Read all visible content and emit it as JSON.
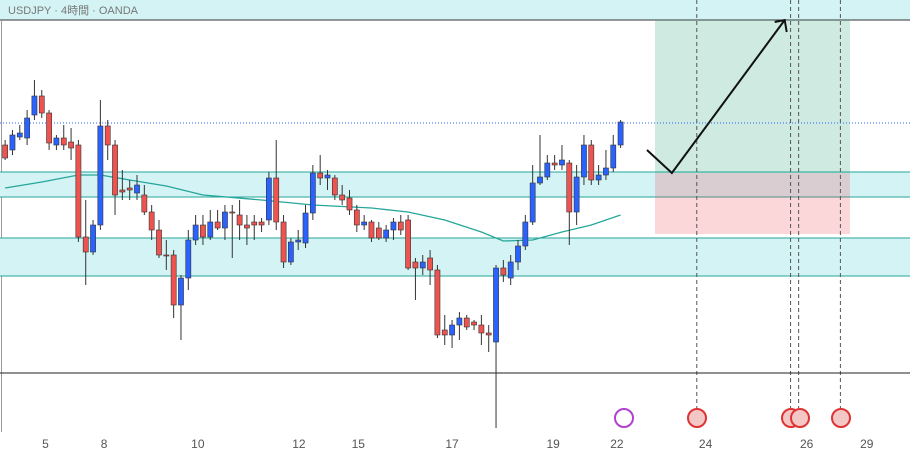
{
  "chart_data": {
    "type": "candlestick",
    "title": "USDJPY · 4時間 · OANDA",
    "open": [
      310,
      305,
      318,
      317,
      340,
      359,
      342,
      310,
      317,
      313,
      310,
      218,
      203,
      230,
      329,
      310,
      265,
      267,
      262,
      260,
      243,
      225,
      200,
      200,
      150,
      177,
      215,
      230,
      218,
      233,
      227,
      243,
      240,
      230,
      233,
      233,
      235,
      277,
      233,
      193,
      213,
      212,
      242,
      282,
      277,
      277,
      260,
      257,
      245,
      230,
      233,
      227,
      217,
      225,
      233,
      235,
      193,
      187,
      197,
      185,
      125,
      120,
      130,
      137,
      133,
      130,
      122,
      113,
      187,
      177,
      193,
      209,
      233,
      272,
      278,
      292,
      290,
      292,
      243,
      278,
      310,
      275,
      280,
      287,
      310
    ],
    "high": [
      315,
      325,
      330,
      345,
      375,
      365,
      345,
      320,
      330,
      327,
      315,
      255,
      235,
      355,
      335,
      315,
      285,
      275,
      280,
      270,
      250,
      235,
      215,
      205,
      180,
      225,
      240,
      240,
      245,
      245,
      250,
      250,
      255,
      240,
      240,
      237,
      283,
      315,
      240,
      217,
      225,
      250,
      290,
      300,
      285,
      280,
      270,
      265,
      250,
      240,
      235,
      233,
      230,
      237,
      240,
      240,
      197,
      200,
      205,
      190,
      140,
      135,
      143,
      140,
      135,
      140,
      130,
      190,
      195,
      200,
      215,
      240,
      290,
      320,
      300,
      300,
      310,
      295,
      290,
      320,
      315,
      290,
      305,
      320,
      335
    ],
    "low": [
      295,
      300,
      315,
      310,
      335,
      337,
      305,
      305,
      305,
      295,
      213,
      170,
      200,
      225,
      295,
      240,
      255,
      255,
      255,
      240,
      215,
      197,
      185,
      137,
      115,
      165,
      210,
      210,
      215,
      225,
      215,
      197,
      215,
      210,
      215,
      223,
      230,
      225,
      187,
      190,
      205,
      207,
      235,
      270,
      265,
      255,
      250,
      240,
      223,
      225,
      213,
      215,
      213,
      215,
      220,
      185,
      155,
      180,
      170,
      117,
      110,
      107,
      115,
      125,
      125,
      110,
      103,
      27,
      173,
      170,
      185,
      205,
      230,
      270,
      275,
      285,
      285,
      210,
      230,
      270,
      270,
      270,
      275,
      283,
      307
    ],
    "close": [
      297,
      320,
      322,
      337,
      359,
      342,
      312,
      317,
      310,
      307,
      218,
      203,
      230,
      329,
      310,
      260,
      263,
      265,
      270,
      243,
      225,
      200,
      199,
      150,
      177,
      215,
      230,
      218,
      233,
      227,
      243,
      242,
      230,
      227,
      230,
      230,
      277,
      233,
      193,
      213,
      215,
      242,
      282,
      277,
      280,
      260,
      255,
      245,
      230,
      233,
      217,
      217,
      225,
      233,
      225,
      187,
      187,
      193,
      185,
      120,
      120,
      130,
      137,
      128,
      130,
      122,
      120,
      187,
      180,
      193,
      209,
      233,
      272,
      278,
      292,
      290,
      295,
      243,
      278,
      310,
      275,
      280,
      287,
      310,
      333
    ],
    "up_color": "#2962ff",
    "down_color": "#ef5350",
    "ma": {
      "color": "#26a69a",
      "x": [
        0,
        5,
        10,
        13,
        17,
        22,
        27,
        35,
        42,
        50,
        55,
        60,
        65,
        68,
        72,
        76,
        80,
        84
      ],
      "values": [
        267,
        273,
        280,
        280,
        275,
        269,
        260,
        255,
        250,
        247,
        243,
        235,
        223,
        214,
        215,
        223,
        230,
        240
      ]
    },
    "xlim": [
      -0.7,
      123.5
    ],
    "xticks": [
      {
        "value": 5.5,
        "label": "5"
      },
      {
        "value": 13.5,
        "label": "8"
      },
      {
        "value": 26.3,
        "label": "10"
      },
      {
        "value": 40.1,
        "label": "12"
      },
      {
        "value": 48.2,
        "label": "15"
      },
      {
        "value": 61,
        "label": "17"
      },
      {
        "value": 74.8,
        "label": "19"
      },
      {
        "value": 83.5,
        "label": "22"
      },
      {
        "value": 95.6,
        "label": "24"
      },
      {
        "value": 109.4,
        "label": "26"
      },
      {
        "value": 117.6,
        "label": "29"
      }
    ],
    "ylim": [
      0,
      455
    ],
    "zones": [
      [
        258,
        283
      ],
      [
        179,
        217
      ]
    ],
    "zone_color": "#d4f3f5",
    "hline": 82,
    "price_line": 332,
    "trade": {
      "x": [
        88.7,
        115.3
      ],
      "stop": 221,
      "entry": 282,
      "target": 435
    },
    "vlines": [
      94.4,
      107.2,
      108.3,
      114
    ],
    "arrow": {
      "x": [
        87.6,
        91,
        106.4
      ],
      "y": [
        305,
        282,
        435
      ]
    }
  }
}
